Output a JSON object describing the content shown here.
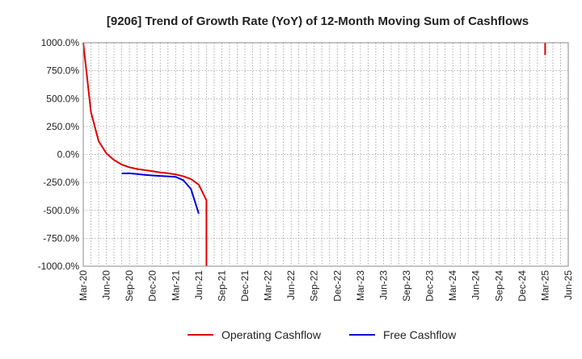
{
  "chart_data": {
    "type": "line",
    "title": "[9206]  Trend of Growth Rate (YoY) of 12-Month Moving Sum of Cashflows",
    "xlabel": "",
    "ylabel": "",
    "ylim": [
      -1000,
      1000
    ],
    "y_ticks": [
      1000,
      750,
      500,
      250,
      0,
      -250,
      -500,
      -750,
      -1000
    ],
    "y_tick_labels": [
      "1000.0%",
      "750.0%",
      "500.0%",
      "250.0%",
      "0.0%",
      "-250.0%",
      "-500.0%",
      "-750.0%",
      "-1000.0%"
    ],
    "x_range": [
      "2020-03",
      "2025-06"
    ],
    "x_tick_labels": [
      "Mar-20",
      "Jun-20",
      "Sep-20",
      "Dec-20",
      "Mar-21",
      "Jun-21",
      "Sep-21",
      "Dec-21",
      "Mar-22",
      "Jun-22",
      "Sep-22",
      "Dec-22",
      "Mar-23",
      "Jun-23",
      "Sep-23",
      "Dec-23",
      "Mar-24",
      "Jun-24",
      "Sep-24",
      "Dec-24",
      "Mar-25",
      "Jun-25"
    ],
    "grid": true,
    "legend_position": "bottom",
    "series": [
      {
        "name": "Operating Cashflow",
        "color": "#dd0000",
        "segments": [
          [
            {
              "x": "2020-03",
              "y": 1000
            },
            {
              "x": "2020-04",
              "y": 380
            },
            {
              "x": "2020-05",
              "y": 120
            },
            {
              "x": "2020-06",
              "y": 10
            },
            {
              "x": "2020-07",
              "y": -50
            },
            {
              "x": "2020-08",
              "y": -90
            },
            {
              "x": "2020-09",
              "y": -115
            },
            {
              "x": "2020-10",
              "y": -130
            },
            {
              "x": "2020-11",
              "y": -140
            },
            {
              "x": "2020-12",
              "y": -150
            },
            {
              "x": "2021-01",
              "y": -160
            },
            {
              "x": "2021-02",
              "y": -168
            },
            {
              "x": "2021-03",
              "y": -178
            },
            {
              "x": "2021-04",
              "y": -195
            },
            {
              "x": "2021-05",
              "y": -220
            },
            {
              "x": "2021-06",
              "y": -270
            },
            {
              "x": "2021-07",
              "y": -410
            },
            {
              "x": "2021-07",
              "y": -1000
            }
          ],
          [
            {
              "x": "2025-03",
              "y": 1000
            },
            {
              "x": "2025-03",
              "y": 890
            }
          ]
        ]
      },
      {
        "name": "Free Cashflow",
        "color": "#0000dd",
        "segments": [
          [
            {
              "x": "2020-08",
              "y": -170
            },
            {
              "x": "2020-09",
              "y": -168
            },
            {
              "x": "2020-10",
              "y": -175
            },
            {
              "x": "2020-11",
              "y": -182
            },
            {
              "x": "2020-12",
              "y": -188
            },
            {
              "x": "2021-01",
              "y": -192
            },
            {
              "x": "2021-02",
              "y": -196
            },
            {
              "x": "2021-03",
              "y": -200
            },
            {
              "x": "2021-04",
              "y": -230
            },
            {
              "x": "2021-05",
              "y": -310
            },
            {
              "x": "2021-06",
              "y": -530
            }
          ]
        ]
      }
    ]
  }
}
